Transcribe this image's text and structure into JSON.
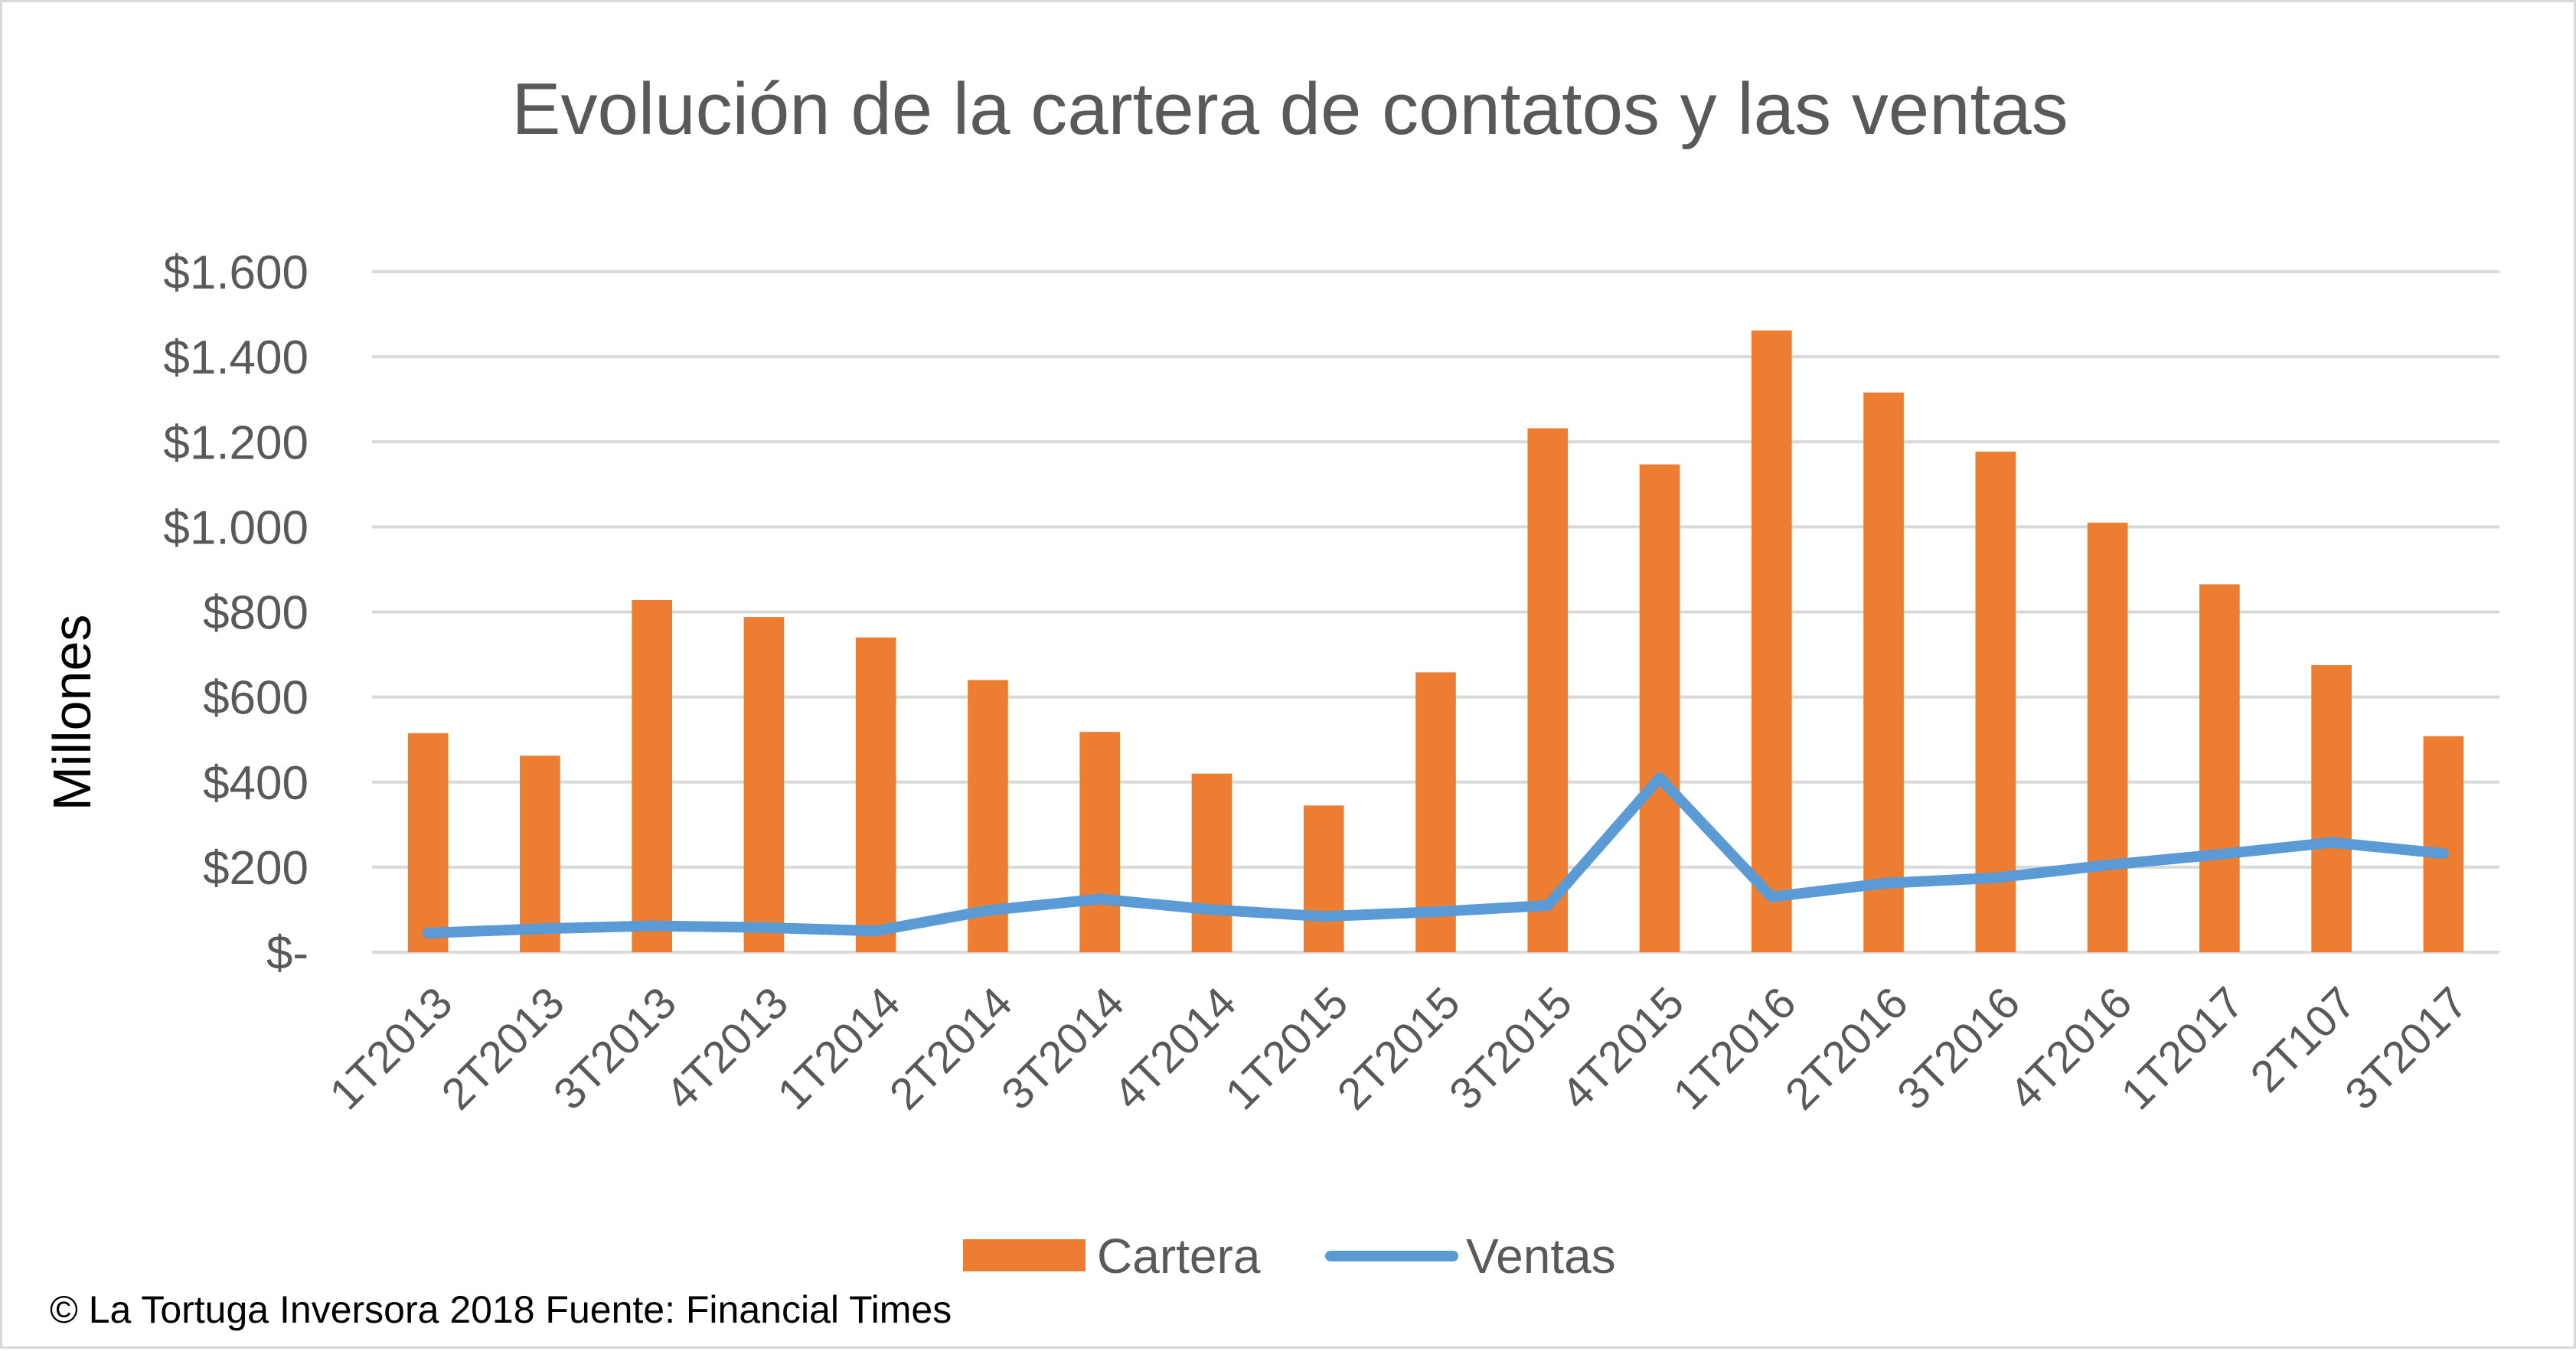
{
  "chart_data": {
    "type": "bar",
    "title": "Evolución de la cartera de contatos y las ventas",
    "ylabel": "Millones",
    "xlabel": "",
    "ylim": [
      0,
      1600
    ],
    "yticks": [
      0,
      200,
      400,
      600,
      800,
      1000,
      1200,
      1400,
      1600
    ],
    "ytick_labels": [
      "$-",
      "$200",
      "$400",
      "$600",
      "$800",
      "$1.000",
      "$1.200",
      "$1.400",
      "$1.600"
    ],
    "grid": true,
    "legend_position": "bottom",
    "categories": [
      "1T2013",
      "2T2013",
      "3T2013",
      "4T2013",
      "1T2014",
      "2T2014",
      "3T2014",
      "4T2014",
      "1T2015",
      "2T2015",
      "3T2015",
      "4T2015",
      "1T2016",
      "2T2016",
      "3T2016",
      "4T2016",
      "1T2017",
      "2T107",
      "3T2017"
    ],
    "series": [
      {
        "name": "Cartera",
        "type": "bar",
        "color": "#ed7d31",
        "values": [
          515,
          462,
          828,
          788,
          740,
          640,
          518,
          420,
          345,
          658,
          1232,
          1147,
          1462,
          1316,
          1177,
          1010,
          865,
          675,
          508
        ]
      },
      {
        "name": "Ventas",
        "type": "line",
        "color": "#5b9bd5",
        "values": [
          45,
          55,
          62,
          58,
          50,
          98,
          125,
          100,
          84,
          95,
          110,
          410,
          130,
          162,
          175,
          205,
          230,
          258,
          232
        ]
      }
    ],
    "credit": "© La Tortuga Inversora 2018 Fuente: Financial Times"
  }
}
